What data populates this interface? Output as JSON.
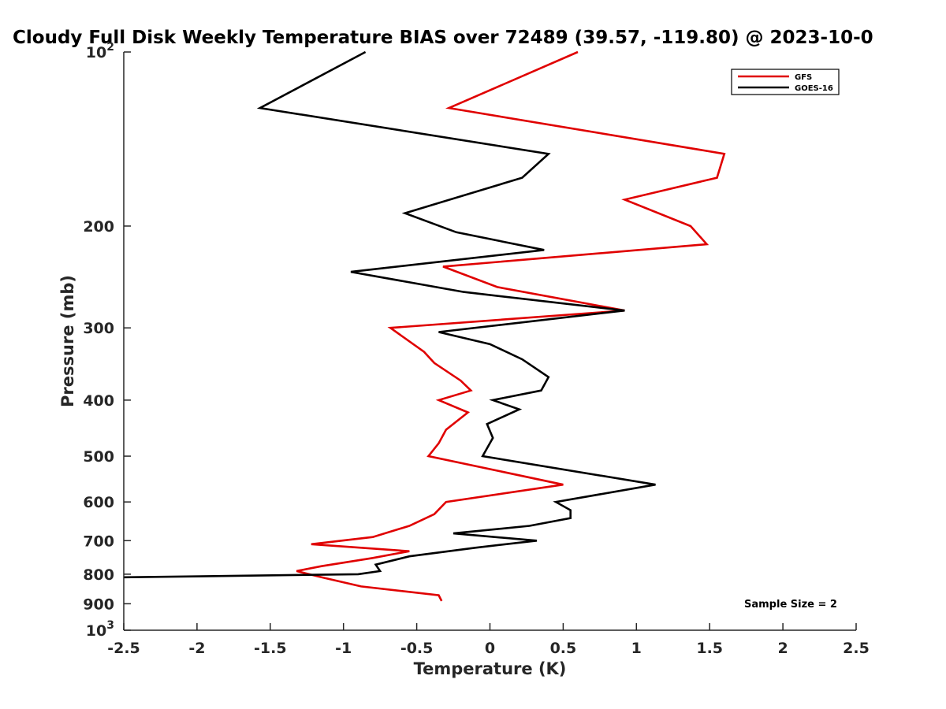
{
  "chart_data": {
    "type": "line",
    "title": "Cloudy Full Disk Weekly Temperature BIAS over 72489 (39.57, -119.80) @ 2023-10-0",
    "xlabel": "Temperature (K)",
    "ylabel": "Pressure (mb)",
    "xlim": [
      -2.5,
      2.5
    ],
    "ylim": [
      100,
      1000
    ],
    "y_scale": "log",
    "y_reversed": true,
    "grid": false,
    "legend_position": "top-right",
    "x_ticks": [
      -2.5,
      -2,
      -1.5,
      -1,
      -0.5,
      0,
      0.5,
      1,
      1.5,
      2,
      2.5
    ],
    "x_tick_labels": [
      "-2.5",
      "-2",
      "-1.5",
      "-1",
      "-0.5",
      "0",
      "0.5",
      "1",
      "1.5",
      "2",
      "2.5"
    ],
    "y_ticks": [
      {
        "value": 100,
        "base": "10",
        "exp": "2"
      },
      {
        "value": 200,
        "label": "200"
      },
      {
        "value": 300,
        "label": "300"
      },
      {
        "value": 400,
        "label": "400"
      },
      {
        "value": 500,
        "label": "500"
      },
      {
        "value": 600,
        "label": "600"
      },
      {
        "value": 700,
        "label": "700"
      },
      {
        "value": 800,
        "label": "800"
      },
      {
        "value": 900,
        "label": "900"
      },
      {
        "value": 1000,
        "base": "10",
        "exp": "3"
      }
    ],
    "annotation": "Sample Size = 2",
    "series": [
      {
        "name": "GFS",
        "color": "#e00000",
        "points": [
          [
            0.6,
            100
          ],
          [
            -0.28,
            125
          ],
          [
            1.6,
            150
          ],
          [
            1.55,
            165
          ],
          [
            0.92,
            180
          ],
          [
            1.37,
            200
          ],
          [
            1.48,
            215
          ],
          [
            -0.32,
            235
          ],
          [
            0.05,
            255
          ],
          [
            0.92,
            280
          ],
          [
            -0.68,
            300
          ],
          [
            -0.45,
            330
          ],
          [
            -0.38,
            345
          ],
          [
            -0.2,
            370
          ],
          [
            -0.13,
            385
          ],
          [
            -0.35,
            400
          ],
          [
            -0.15,
            420
          ],
          [
            -0.3,
            450
          ],
          [
            -0.35,
            475
          ],
          [
            -0.42,
            500
          ],
          [
            0.5,
            560
          ],
          [
            -0.3,
            600
          ],
          [
            -0.38,
            630
          ],
          [
            -0.55,
            660
          ],
          [
            -0.8,
            690
          ],
          [
            -1.22,
            710
          ],
          [
            -0.55,
            730
          ],
          [
            -0.8,
            750
          ],
          [
            -1.15,
            775
          ],
          [
            -1.32,
            790
          ],
          [
            -1.15,
            810
          ],
          [
            -0.88,
            840
          ],
          [
            -0.35,
            870
          ],
          [
            -0.33,
            890
          ]
        ]
      },
      {
        "name": "GOES-16",
        "color": "#000000",
        "points": [
          [
            -0.85,
            100
          ],
          [
            -1.57,
            125
          ],
          [
            0.4,
            150
          ],
          [
            0.22,
            165
          ],
          [
            -0.58,
            190
          ],
          [
            -0.23,
            205
          ],
          [
            0.37,
            220
          ],
          [
            -0.95,
            240
          ],
          [
            -0.18,
            260
          ],
          [
            0.92,
            280
          ],
          [
            -0.35,
            305
          ],
          [
            0.0,
            320
          ],
          [
            0.22,
            340
          ],
          [
            0.4,
            365
          ],
          [
            0.35,
            385
          ],
          [
            0.02,
            400
          ],
          [
            0.2,
            415
          ],
          [
            -0.02,
            440
          ],
          [
            0.02,
            465
          ],
          [
            -0.05,
            500
          ],
          [
            1.13,
            560
          ],
          [
            0.45,
            600
          ],
          [
            0.55,
            620
          ],
          [
            0.55,
            640
          ],
          [
            0.27,
            660
          ],
          [
            -0.25,
            680
          ],
          [
            0.32,
            700
          ],
          [
            -0.1,
            720
          ],
          [
            -0.55,
            745
          ],
          [
            -0.78,
            770
          ],
          [
            -0.75,
            790
          ],
          [
            -0.9,
            800
          ],
          [
            -2.5,
            810
          ]
        ]
      }
    ]
  }
}
